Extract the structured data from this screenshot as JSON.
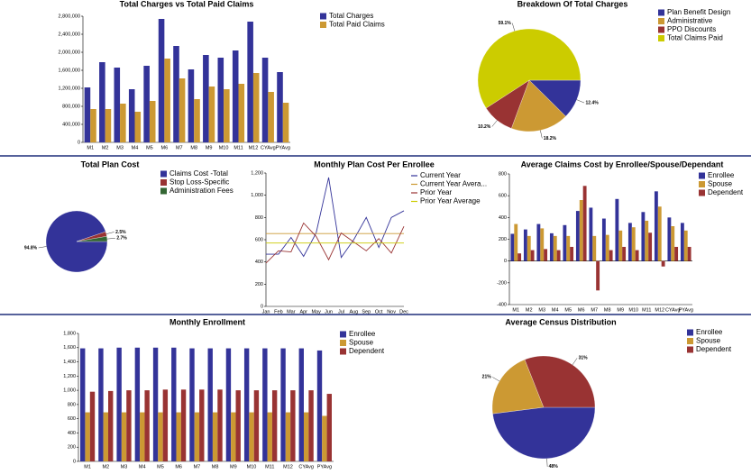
{
  "chart_data": [
    {
      "type": "bar",
      "title": "Total Charges vs Total Paid Claims",
      "categories": [
        "M1",
        "M2",
        "M3",
        "M4",
        "M5",
        "M6",
        "M7",
        "M8",
        "M9",
        "M10",
        "M11",
        "M12",
        "CYAvg",
        "PYAvg"
      ],
      "series": [
        {
          "name": "Total Charges",
          "color": "#333399",
          "values": [
            1220000,
            1780000,
            1660000,
            1180000,
            1700000,
            2740000,
            2140000,
            1620000,
            1940000,
            1880000,
            2040000,
            2680000,
            1880000,
            1560000
          ]
        },
        {
          "name": "Total Paid Claims",
          "color": "#cc9933",
          "values": [
            740000,
            740000,
            860000,
            680000,
            920000,
            1860000,
            1420000,
            960000,
            1240000,
            1180000,
            1300000,
            1540000,
            1120000,
            880000
          ]
        }
      ],
      "ylim": [
        0,
        2800000
      ],
      "yticks": [
        0,
        {
          "value": 400000,
          "label": "400,000"
        },
        {
          "value": 800000,
          "label": "800,000"
        },
        {
          "value": 1200000,
          "label": "1,200,000"
        },
        {
          "value": 1600000,
          "label": "1,600,000"
        },
        {
          "value": 2000000,
          "label": "2,000,000"
        },
        {
          "value": 2400000,
          "label": "2,400,000"
        },
        {
          "value": 2800000,
          "label": "2,800,000"
        }
      ]
    },
    {
      "type": "pie",
      "title": "Breakdown Of Total Charges",
      "categories": [
        "Plan Benefit Design",
        "Administrative",
        "PPO Discounts",
        "Total Claims Paid"
      ],
      "values": [
        12.4,
        18.2,
        10.2,
        59.1
      ],
      "value_labels": [
        "12.4%",
        "18.2%",
        "10.2%",
        "59.1%"
      ],
      "colors": [
        "#333399",
        "#cc9933",
        "#993333",
        "#cccc00"
      ]
    },
    {
      "type": "pie",
      "title": "Total Plan Cost",
      "categories": [
        "Claims Cost -Total",
        "Stop Loss-Specific",
        "Administration Fees"
      ],
      "values": [
        94.8,
        2.5,
        2.7
      ],
      "value_labels": [
        "94.8%",
        "2.5%",
        "2.7%"
      ],
      "colors": [
        "#333399",
        "#993333",
        "#336633"
      ]
    },
    {
      "type": "line",
      "title": "Monthly Plan Cost Per Enrollee",
      "categories": [
        "Jan",
        "Feb",
        "Mar",
        "Apr",
        "May",
        "Jun",
        "Jul",
        "Aug",
        "Sep",
        "Oct",
        "Nov",
        "Dec"
      ],
      "series": [
        {
          "name": "Current Year",
          "color": "#333399",
          "values": [
            470,
            470,
            620,
            450,
            660,
            1160,
            440,
            600,
            800,
            530,
            800,
            860
          ]
        },
        {
          "name": "Current Year Avera...",
          "color": "#cc9933",
          "values": [
            655,
            655,
            655,
            655,
            655,
            655,
            655,
            655,
            655,
            655,
            655,
            655
          ]
        },
        {
          "name": "Prior Year",
          "color": "#993333",
          "values": [
            390,
            500,
            490,
            750,
            630,
            420,
            660,
            580,
            500,
            610,
            480,
            720
          ]
        },
        {
          "name": "Prior Year Average",
          "color": "#cccc00",
          "values": [
            570,
            570,
            570,
            570,
            570,
            570,
            570,
            570,
            570,
            570,
            570,
            570
          ]
        }
      ],
      "ylim": [
        0,
        1200
      ],
      "yticks": [
        0,
        200,
        400,
        600,
        800,
        {
          "value": 1000,
          "label": "1,000"
        },
        {
          "value": 1200,
          "label": "1,200"
        }
      ]
    },
    {
      "type": "bar",
      "title": "Average Claims Cost by Enrollee/Spouse/Dependant",
      "categories": [
        "M1",
        "M2",
        "M3",
        "M4",
        "M5",
        "M6",
        "M7",
        "M8",
        "M9",
        "M10",
        "M11",
        "M12",
        "CYAvg",
        "PYAvg"
      ],
      "series": [
        {
          "name": "Enrollee",
          "color": "#333399",
          "values": [
            250,
            290,
            340,
            255,
            330,
            460,
            490,
            390,
            570,
            350,
            450,
            640,
            400,
            350
          ]
        },
        {
          "name": "Spouse",
          "color": "#cc9933",
          "values": [
            340,
            230,
            300,
            230,
            230,
            560,
            230,
            240,
            280,
            310,
            370,
            500,
            320,
            280
          ]
        },
        {
          "name": "Dependent",
          "color": "#993333",
          "values": [
            70,
            100,
            110,
            100,
            130,
            690,
            -270,
            100,
            130,
            100,
            260,
            -50,
            130,
            130
          ]
        }
      ],
      "ylim": [
        -400,
        800
      ],
      "yticks": [
        -400,
        -200,
        0,
        200,
        400,
        600,
        800
      ]
    },
    {
      "type": "bar",
      "title": "Monthly Enrollment",
      "categories": [
        "M1",
        "M2",
        "M3",
        "M4",
        "M5",
        "M6",
        "M7",
        "M8",
        "M9",
        "M10",
        "M11",
        "M12",
        "CYAvg",
        "PYAvg"
      ],
      "series": [
        {
          "name": "Enrollee",
          "color": "#333399",
          "values": [
            1590,
            1590,
            1600,
            1600,
            1600,
            1600,
            1590,
            1590,
            1590,
            1590,
            1590,
            1590,
            1590,
            1560
          ]
        },
        {
          "name": "Spouse",
          "color": "#cc9933",
          "values": [
            690,
            690,
            690,
            690,
            690,
            690,
            690,
            690,
            690,
            690,
            690,
            690,
            690,
            640
          ]
        },
        {
          "name": "Dependent",
          "color": "#993333",
          "values": [
            980,
            990,
            1000,
            1000,
            1010,
            1010,
            1010,
            1010,
            1000,
            1000,
            1000,
            1000,
            1000,
            950
          ]
        }
      ],
      "ylim": [
        0,
        1800
      ],
      "yticks": [
        0,
        200,
        400,
        600,
        800,
        {
          "value": 1000,
          "label": "1,000"
        },
        {
          "value": 1200,
          "label": "1,200"
        },
        {
          "value": 1400,
          "label": "1,400"
        },
        {
          "value": 1600,
          "label": "1,600"
        },
        {
          "value": 1800,
          "label": "1,800"
        }
      ]
    },
    {
      "type": "pie",
      "title": "Average Census Distribution",
      "categories": [
        "Enrollee",
        "Spouse",
        "Dependent"
      ],
      "values": [
        48,
        21,
        31
      ],
      "value_labels": [
        "48%",
        "21%",
        "31%"
      ],
      "colors": [
        "#333399",
        "#cc9933",
        "#993333"
      ]
    }
  ]
}
